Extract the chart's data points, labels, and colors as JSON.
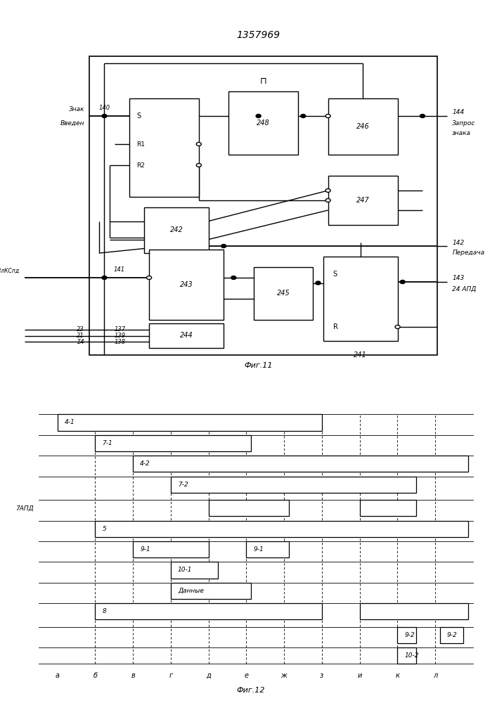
{
  "title": "1357969",
  "fig11_caption": "Фиг.11",
  "fig12_caption": "Фиг.12",
  "bg_color": "#ffffff"
}
